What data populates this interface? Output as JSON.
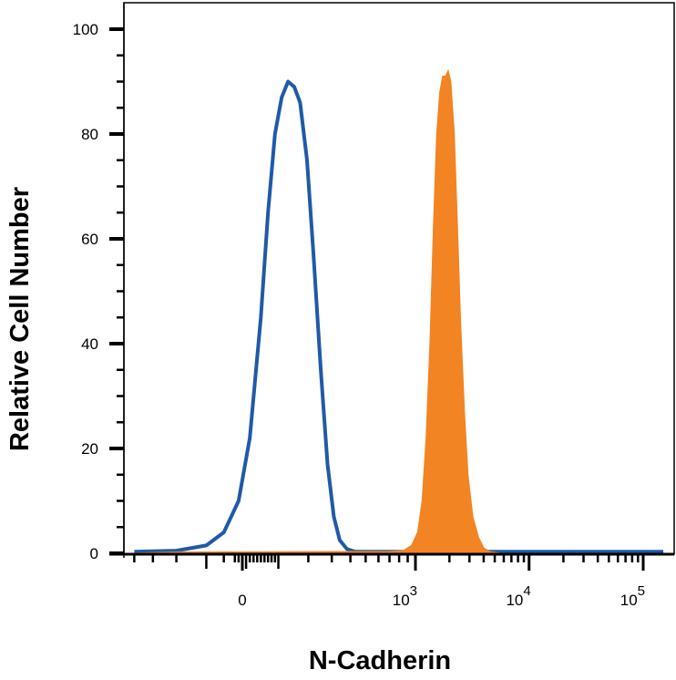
{
  "chart_data": {
    "type": "area",
    "title": "",
    "xlabel": "N-Cadherin",
    "ylabel": "Relative Cell Number",
    "x_scale": "biexponential",
    "ylim": [
      0,
      100
    ],
    "yticks": [
      {
        "label": "0",
        "value": 0
      },
      {
        "label": "20",
        "value": 20
      },
      {
        "label": "40",
        "value": 40
      },
      {
        "label": "60",
        "value": 60
      },
      {
        "label": "80",
        "value": 80
      },
      {
        "label": "100",
        "value": 100
      }
    ],
    "xticks": [
      {
        "base": "0",
        "exp": "",
        "value": 0
      },
      {
        "base": "10",
        "exp": "3",
        "value": 1000
      },
      {
        "base": "10",
        "exp": "4",
        "value": 10000
      },
      {
        "base": "10",
        "exp": "5",
        "value": 100000
      }
    ],
    "grid": false,
    "legend": "none",
    "series": [
      {
        "style": "outline",
        "color": "#1f5aa8",
        "points": [
          [
            -400,
            0.3
          ],
          [
            -200,
            0.5
          ],
          [
            -100,
            1.5
          ],
          [
            -50,
            4
          ],
          [
            -10,
            10
          ],
          [
            20,
            22
          ],
          [
            50,
            45
          ],
          [
            70,
            65
          ],
          [
            90,
            80
          ],
          [
            110,
            87
          ],
          [
            130,
            90
          ],
          [
            150,
            89
          ],
          [
            170,
            86
          ],
          [
            195,
            75
          ],
          [
            220,
            57
          ],
          [
            250,
            35
          ],
          [
            280,
            17
          ],
          [
            310,
            7
          ],
          [
            340,
            2.5
          ],
          [
            380,
            0.8
          ],
          [
            430,
            0.3
          ],
          [
            600,
            0.3
          ],
          [
            2000,
            0.3
          ],
          [
            30000,
            0.3
          ],
          [
            150000,
            0.3
          ]
        ]
      },
      {
        "style": "filled",
        "color": "#f28423",
        "points": [
          [
            -400,
            0
          ],
          [
            -200,
            0.2
          ],
          [
            300,
            0.3
          ],
          [
            700,
            0.3
          ],
          [
            850,
            0.5
          ],
          [
            950,
            1.5
          ],
          [
            1050,
            4
          ],
          [
            1150,
            10
          ],
          [
            1250,
            22
          ],
          [
            1350,
            40
          ],
          [
            1450,
            62
          ],
          [
            1550,
            80
          ],
          [
            1650,
            88
          ],
          [
            1750,
            91
          ],
          [
            1850,
            91
          ],
          [
            1950,
            92
          ],
          [
            2050,
            90
          ],
          [
            2200,
            80
          ],
          [
            2350,
            62
          ],
          [
            2500,
            44
          ],
          [
            2700,
            27
          ],
          [
            2900,
            15
          ],
          [
            3200,
            7
          ],
          [
            3600,
            3
          ],
          [
            4000,
            1
          ],
          [
            4500,
            0.3
          ],
          [
            5500,
            0
          ]
        ]
      }
    ]
  }
}
